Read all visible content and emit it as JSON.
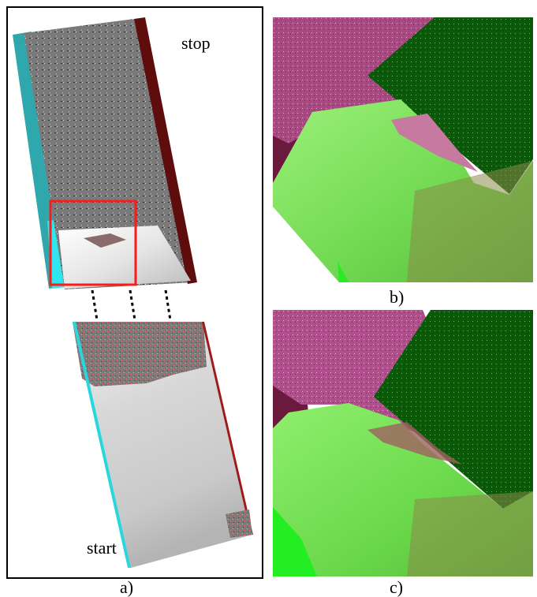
{
  "panel_a": {
    "label_stop": "stop",
    "label_start": "start",
    "caption": "a)"
  },
  "panel_b": {
    "caption": "b)"
  },
  "panel_c": {
    "caption": "c)"
  },
  "colors": {
    "frame": "#000000",
    "highlight_box": "#ff1a1a",
    "cyan_edge": "#32e0e6",
    "dark_red_edge": "#6b0b0b",
    "magenta_land": "#a8407e",
    "bright_green": "#55ff3a",
    "dark_green": "#0b5e0b"
  }
}
